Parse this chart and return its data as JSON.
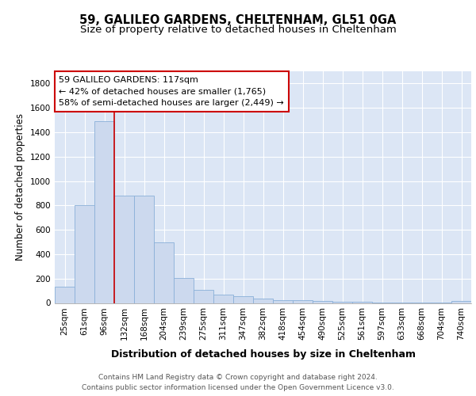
{
  "title_line1": "59, GALILEO GARDENS, CHELTENHAM, GL51 0GA",
  "title_line2": "Size of property relative to detached houses in Cheltenham",
  "xlabel": "Distribution of detached houses by size in Cheltenham",
  "ylabel": "Number of detached properties",
  "categories": [
    "25sqm",
    "61sqm",
    "96sqm",
    "132sqm",
    "168sqm",
    "204sqm",
    "239sqm",
    "275sqm",
    "311sqm",
    "347sqm",
    "382sqm",
    "418sqm",
    "454sqm",
    "490sqm",
    "525sqm",
    "561sqm",
    "597sqm",
    "633sqm",
    "668sqm",
    "704sqm",
    "740sqm"
  ],
  "values": [
    130,
    800,
    1490,
    880,
    880,
    500,
    205,
    110,
    65,
    55,
    35,
    25,
    20,
    15,
    10,
    8,
    5,
    3,
    2,
    2,
    15
  ],
  "bar_color": "#ccd9ee",
  "bar_edge_color": "#8ab0d8",
  "background_color": "#dce6f5",
  "grid_color": "#ffffff",
  "vline_x_index": 3,
  "vline_color": "#cc0000",
  "annotation_text": "59 GALILEO GARDENS: 117sqm\n← 42% of detached houses are smaller (1,765)\n58% of semi-detached houses are larger (2,449) →",
  "annotation_box_color": "#ffffff",
  "annotation_box_edge": "#cc0000",
  "ylim": [
    0,
    1900
  ],
  "yticks": [
    0,
    200,
    400,
    600,
    800,
    1000,
    1200,
    1400,
    1600,
    1800
  ],
  "footer_text": "Contains HM Land Registry data © Crown copyright and database right 2024.\nContains public sector information licensed under the Open Government Licence v3.0.",
  "title_fontsize": 10.5,
  "subtitle_fontsize": 9.5,
  "xlabel_fontsize": 9,
  "ylabel_fontsize": 8.5,
  "tick_fontsize": 7.5,
  "annotation_fontsize": 8,
  "footer_fontsize": 6.5
}
